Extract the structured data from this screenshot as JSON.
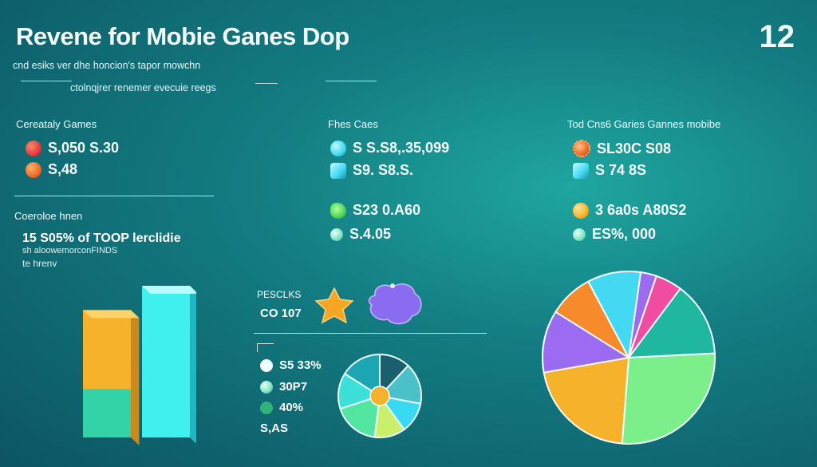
{
  "header": {
    "title": "Revene for Mobie Ganes Dop",
    "page_number": "12",
    "subtitle_line1": "cnd esiks ver dhe honcion's tapor mowchn",
    "subtitle_line2": "ctolnqjrer renemer evecuie reegs"
  },
  "colors": {
    "background_center": "#1fa6a0",
    "background_edge": "#0c5562",
    "orange": "#f7a623",
    "cyan": "#43e8f2",
    "green": "#7bf08a",
    "purple": "#9b6cf0",
    "red": "#e53a3a",
    "pink": "#f04ca0"
  },
  "section_left": {
    "heading": "Cereataly Games",
    "stats": [
      {
        "icon": "red-gem-icon",
        "value": "S,050 S.30"
      },
      {
        "icon": "orange-gem-icon",
        "value": "S,48"
      }
    ],
    "heading2": "Coeroloe hnen",
    "metric_line": "15  S05% of TOOP lerclidie",
    "metric_caption": "sh aloowemorconFINDS",
    "metric_caption2": "te hrenv"
  },
  "section_middle": {
    "heading": "Fhes Caes",
    "stats": [
      {
        "icon": "cyan-orb-icon",
        "value": "S S.S8,.35,099"
      },
      {
        "icon": "cyan-gift-icon",
        "value": "S9.  S8.S."
      },
      {
        "icon": "green-leaf-icon",
        "value": "S23  0.A60"
      },
      {
        "icon": "globe-icon",
        "value": "S.4.05"
      }
    ],
    "label_top": "PESCLKS",
    "label_value": "CO 107",
    "pie_legend": [
      {
        "icon": "white-dot-icon",
        "value": "S5 33%"
      },
      {
        "icon": "globe-icon",
        "value": "30P7"
      },
      {
        "icon": "green-dot-icon",
        "value": "40%"
      },
      {
        "icon": "none",
        "value": "S,AS"
      }
    ]
  },
  "section_right": {
    "heading": "Tod Cns6 Garies Gannes mobibe",
    "stats": [
      {
        "icon": "orange-gear-icon",
        "value": "SL30C S08"
      },
      {
        "icon": "cyan-gift-icon",
        "value": "S  74 8S"
      },
      {
        "icon": "yellow-coin-icon",
        "value": "3  6a0s A80S2"
      },
      {
        "icon": "globe-icon",
        "value": "ES%, 000"
      }
    ]
  },
  "chart_data": [
    {
      "type": "bar",
      "categories": [
        "",
        ""
      ],
      "values": [
        84,
        100
      ],
      "series_colors": [
        "#f7b22b",
        "#3ff0ee"
      ],
      "ylim": [
        0,
        100
      ],
      "title": "",
      "xlabel": "",
      "ylabel": ""
    },
    {
      "type": "pie",
      "labels": [
        "",
        "",
        "",
        "",
        "",
        "",
        ""
      ],
      "values": [
        12,
        16,
        12,
        12,
        18,
        14,
        16
      ],
      "colors": [
        "#1b5f6e",
        "#4ac1c9",
        "#39d9f2",
        "#c9f06a",
        "#52e6a0",
        "#3ce0d8",
        "#1ca6b4"
      ],
      "center_color": "#f7b22b",
      "title": ""
    },
    {
      "type": "pie",
      "labels": [
        "",
        "",
        "",
        "",
        "",
        "",
        ""
      ],
      "values": [
        3,
        5,
        14,
        27,
        22,
        19,
        10
      ],
      "colors": [
        "#9b6cf0",
        "#f04ca0",
        "#1fb7a0",
        "#7bf08a",
        "#f7b22b",
        "#f78a2b",
        "#43d9f2"
      ],
      "extra_slice": {
        "value": 10,
        "color": "#9b6cf0"
      },
      "title": ""
    }
  ]
}
